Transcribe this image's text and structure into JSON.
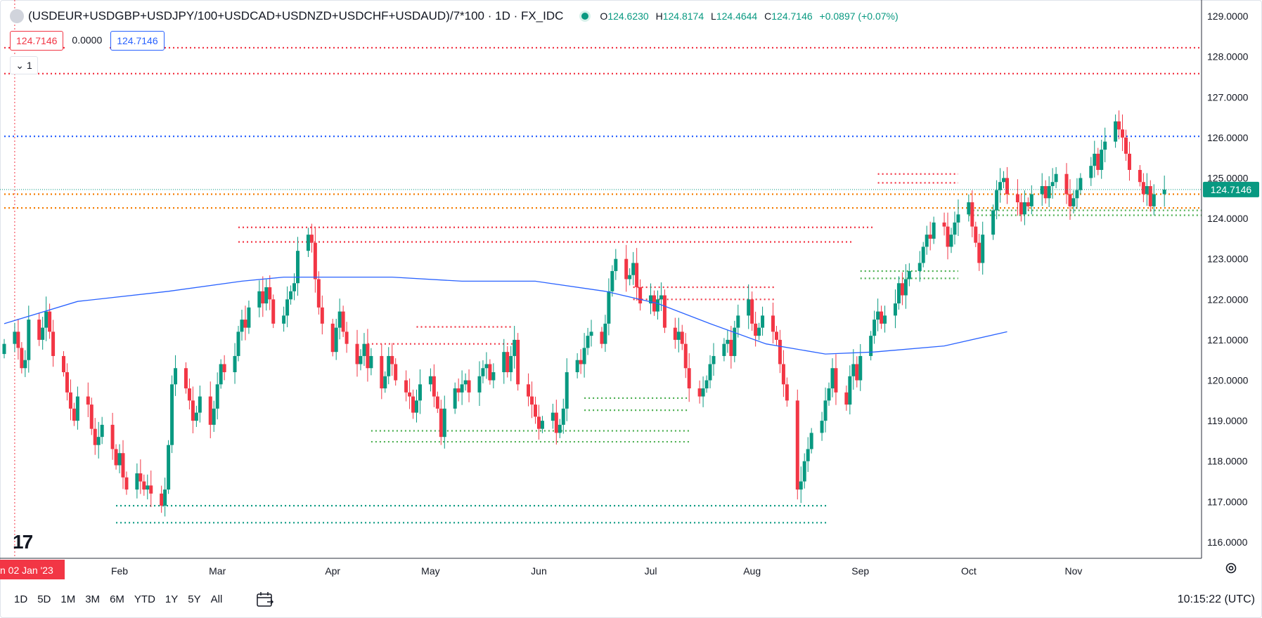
{
  "legend": {
    "title": "(USDEUR+USDGBP+USDJPY/100+USDCAD+USDNZD+USDCHF+USDAUD)/7*100 · 1D · FX_IDC",
    "open_label": "O",
    "open": "124.6230",
    "high_label": "H",
    "high": "124.8174",
    "low_label": "L",
    "low": "124.4644",
    "close_label": "C",
    "close": "124.7146",
    "change": "+0.0897 (+0.07%)"
  },
  "badges": {
    "bid": "124.7146",
    "spread": "0.0000",
    "ask": "124.7146"
  },
  "study_toggle": {
    "count": "1"
  },
  "bottom_bar": {
    "ranges": [
      "1D",
      "5D",
      "1M",
      "3M",
      "6M",
      "YTD",
      "1Y",
      "5Y",
      "All"
    ],
    "clock": "10:15:22 (UTC)"
  },
  "colors": {
    "up": "#089981",
    "down": "#f23645",
    "ma": "#2962ff",
    "level_red": "#f23645",
    "level_blue": "#2962ff",
    "level_orange": "#f57c00",
    "level_green": "#4caf50",
    "level_teal": "#089981"
  },
  "chart_data": {
    "type": "candlestick",
    "ylim": [
      115.6,
      129.4
    ],
    "y_ticks": [
      "129.0000",
      "128.0000",
      "127.0000",
      "126.0000",
      "125.0000",
      "124.0000",
      "123.0000",
      "122.0000",
      "121.0000",
      "120.0000",
      "119.0000",
      "118.0000",
      "117.0000",
      "116.0000"
    ],
    "y_tick_values": [
      129,
      128,
      127,
      126,
      125,
      124,
      123,
      122,
      121,
      120,
      119,
      118,
      117,
      116
    ],
    "x_ticks": [
      {
        "label": "Feb",
        "date": "2023-02-01"
      },
      {
        "label": "Mar",
        "date": "2023-03-01"
      },
      {
        "label": "Apr",
        "date": "2023-04-03"
      },
      {
        "label": "May",
        "date": "2023-05-01"
      },
      {
        "label": "Jun",
        "date": "2023-06-01"
      },
      {
        "label": "Jul",
        "date": "2023-07-03"
      },
      {
        "label": "Aug",
        "date": "2023-08-01"
      },
      {
        "label": "Sep",
        "date": "2023-09-01"
      },
      {
        "label": "Oct",
        "date": "2023-10-02"
      },
      {
        "label": "Nov",
        "date": "2023-11-01"
      }
    ],
    "crosshair_label": "n 02 Jan '23",
    "crosshair_date": "2023-01-02",
    "last_price": "124.7146",
    "last_value": 124.7146,
    "first_date": "2022-12-30",
    "closes": [
      120.9,
      121.2,
      120.8,
      120.3,
      120.5,
      121.5,
      121.0,
      121.3,
      121.7,
      121.2,
      120.6,
      120.2,
      119.7,
      119.3,
      119.0,
      119.6,
      119.4,
      118.8,
      118.4,
      118.6,
      118.9,
      118.3,
      117.9,
      118.2,
      117.6,
      117.3,
      117.7,
      117.5,
      117.3,
      117.4,
      117.2,
      116.9,
      117.3,
      118.4,
      119.9,
      120.3,
      119.8,
      119.5,
      119.0,
      119.2,
      119.6,
      118.9,
      119.3,
      119.9,
      120.4,
      120.2,
      120.6,
      121.2,
      121.5,
      121.3,
      121.8,
      122.2,
      121.9,
      122.3,
      122.0,
      121.4,
      121.6,
      122.0,
      122.2,
      122.4,
      123.2,
      123.6,
      123.4,
      122.5,
      121.8,
      121.4,
      120.7,
      121.3,
      121.7,
      121.2,
      120.9,
      120.4,
      120.6,
      120.9,
      120.3,
      120.6,
      119.8,
      120.1,
      120.6,
      120.4,
      120.0,
      119.7,
      119.6,
      119.2,
      119.5,
      119.9,
      120.1,
      119.6,
      119.3,
      118.6,
      119.3,
      119.8,
      119.7,
      119.9,
      120.0,
      119.7,
      120.1,
      120.3,
      120.4,
      120.0,
      120.2,
      120.7,
      120.2,
      120.6,
      121.0,
      119.9,
      119.6,
      119.4,
      119.1,
      118.8,
      119.0,
      119.2,
      118.7,
      118.9,
      119.3,
      120.2,
      120.5,
      120.4,
      120.8,
      121.1,
      121.2,
      120.9,
      121.4,
      122.2,
      122.7,
      123.0,
      122.5,
      122.6,
      122.9,
      122.3,
      121.9,
      122.1,
      121.7,
      122.0,
      122.1,
      121.3,
      121.0,
      121.2,
      120.9,
      120.3,
      119.8,
      119.6,
      119.8,
      120.0,
      120.4,
      120.6,
      120.9,
      121.0,
      120.6,
      121.3,
      121.6,
      122.0,
      121.4,
      121.1,
      121.3,
      121.6,
      121.2,
      121.0,
      120.4,
      119.9,
      119.5,
      117.3,
      117.5,
      118.0,
      118.3,
      118.7,
      119.0,
      119.5,
      119.8,
      120.3,
      119.7,
      119.4,
      120.1,
      120.4,
      120.0,
      120.6,
      121.1,
      121.5,
      121.7,
      121.4,
      121.6,
      121.9,
      122.4,
      122.1,
      122.5,
      122.7,
      122.9,
      123.3,
      123.6,
      123.5,
      123.9,
      123.8,
      123.3,
      123.6,
      123.9,
      124.1,
      124.4,
      123.8,
      123.4,
      122.9,
      123.6,
      124.2,
      124.7,
      124.9,
      125.0,
      124.6,
      124.4,
      124.1,
      124.4,
      124.3,
      124.6,
      124.8,
      124.5,
      124.8,
      124.9,
      125.1,
      124.6,
      124.3,
      124.5,
      124.7,
      125.0,
      125.3,
      125.6,
      125.2,
      125.7,
      125.9,
      126.4,
      126.2,
      126.0,
      125.6,
      125.2,
      124.9,
      124.6,
      124.8,
      124.3,
      124.6,
      124.7146
    ],
    "ma_series": {
      "name": "",
      "points": [
        {
          "date": "2022-12-30",
          "value": 121.4
        },
        {
          "date": "2023-01-20",
          "value": 121.95
        },
        {
          "date": "2023-02-15",
          "value": 122.2
        },
        {
          "date": "2023-03-08",
          "value": 122.45
        },
        {
          "date": "2023-03-20",
          "value": 122.55
        },
        {
          "date": "2023-04-20",
          "value": 122.55
        },
        {
          "date": "2023-05-10",
          "value": 122.45
        },
        {
          "date": "2023-05-31",
          "value": 122.45
        },
        {
          "date": "2023-06-20",
          "value": 122.2
        },
        {
          "date": "2023-07-05",
          "value": 121.9
        },
        {
          "date": "2023-07-20",
          "value": 121.4
        },
        {
          "date": "2023-08-05",
          "value": 120.9
        },
        {
          "date": "2023-08-22",
          "value": 120.65
        },
        {
          "date": "2023-09-05",
          "value": 120.7
        },
        {
          "date": "2023-09-25",
          "value": 120.85
        },
        {
          "date": "2023-10-13",
          "value": 121.2
        }
      ]
    },
    "levels": [
      {
        "price": 128.22,
        "from": "2022-12-30",
        "to": "open",
        "color": "#f23645"
      },
      {
        "price": 127.58,
        "from": "2022-12-30",
        "to": "open",
        "color": "#f23645"
      },
      {
        "price": 126.03,
        "from": "2022-12-30",
        "to": "open",
        "color": "#2962ff"
      },
      {
        "price": 124.6,
        "from": "2022-12-30",
        "to": "open",
        "color": "#f57c00"
      },
      {
        "price": 124.26,
        "from": "2022-12-30",
        "to": "open",
        "color": "#f57c00"
      },
      {
        "price": 123.78,
        "from": "2023-03-07",
        "to": "2023-09-05",
        "color": "#f23645"
      },
      {
        "price": 123.42,
        "from": "2023-03-07",
        "to": "2023-08-30",
        "color": "#f23645"
      },
      {
        "price": 125.1,
        "from": "2023-09-06",
        "to": "2023-09-29",
        "color": "#f23645"
      },
      {
        "price": 124.88,
        "from": "2023-09-06",
        "to": "2023-09-29",
        "color": "#f23645"
      },
      {
        "price": 122.3,
        "from": "2023-06-28",
        "to": "2023-08-08",
        "color": "#f23645"
      },
      {
        "price": 122.0,
        "from": "2023-06-28",
        "to": "2023-08-08",
        "color": "#f23645"
      },
      {
        "price": 121.32,
        "from": "2023-04-27",
        "to": "2023-05-24",
        "color": "#f23645"
      },
      {
        "price": 120.9,
        "from": "2023-04-13",
        "to": "2023-05-25",
        "color": "#f23645"
      },
      {
        "price": 124.2,
        "from": "2023-10-02",
        "to": "open",
        "color": "#4caf50"
      },
      {
        "price": 124.08,
        "from": "2023-10-02",
        "to": "open",
        "color": "#4caf50"
      },
      {
        "price": 122.7,
        "from": "2023-09-01",
        "to": "2023-09-29",
        "color": "#4caf50"
      },
      {
        "price": 122.52,
        "from": "2023-09-01",
        "to": "2023-09-29",
        "color": "#4caf50"
      },
      {
        "price": 119.56,
        "from": "2023-06-14",
        "to": "2023-07-14",
        "color": "#4caf50"
      },
      {
        "price": 119.26,
        "from": "2023-06-14",
        "to": "2023-07-14",
        "color": "#4caf50"
      },
      {
        "price": 118.75,
        "from": "2023-04-14",
        "to": "2023-07-14",
        "color": "#4caf50"
      },
      {
        "price": 118.48,
        "from": "2023-04-14",
        "to": "2023-07-14",
        "color": "#4caf50"
      },
      {
        "price": 116.9,
        "from": "2023-01-31",
        "to": "2023-08-23",
        "color": "#089981"
      },
      {
        "price": 116.48,
        "from": "2023-01-31",
        "to": "2023-08-23",
        "color": "#089981"
      }
    ]
  }
}
